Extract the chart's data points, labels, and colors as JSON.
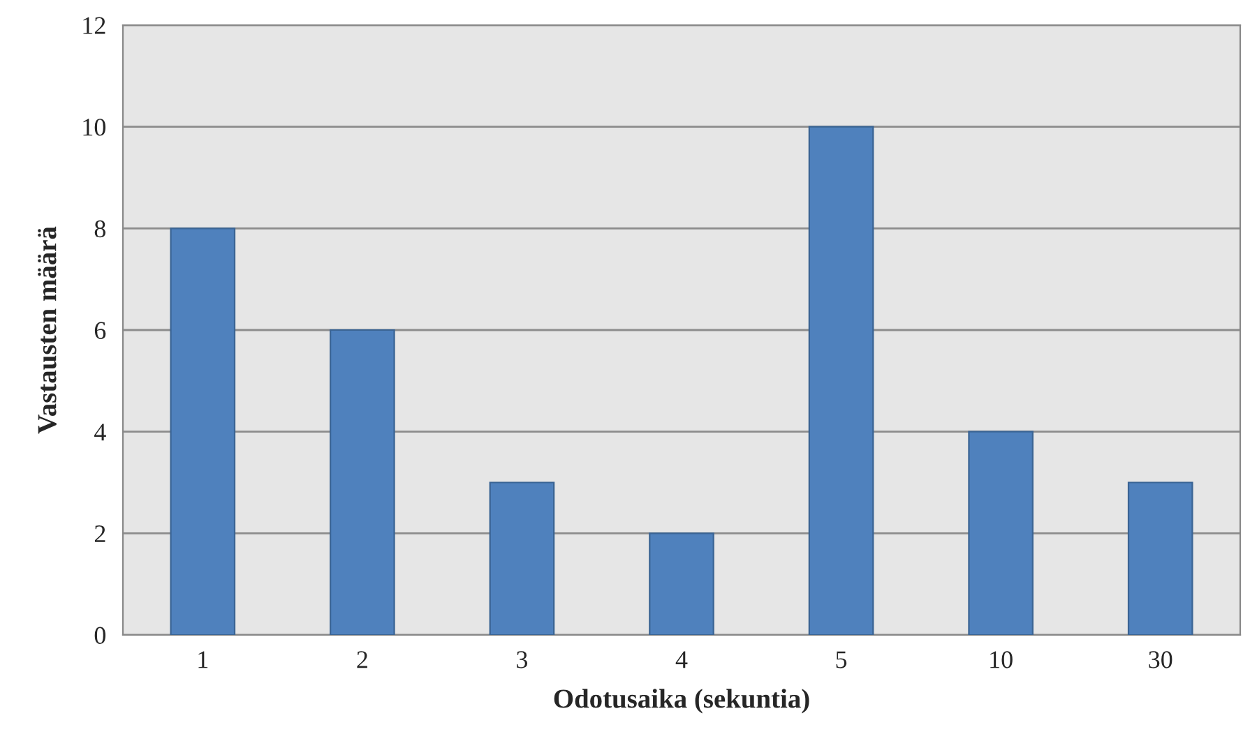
{
  "chart_data": {
    "type": "bar",
    "xlabel": "Odotusaika (sekuntia)",
    "ylabel": "Vastausten määrä",
    "categories": [
      "1",
      "2",
      "3",
      "4",
      "5",
      "10",
      "30"
    ],
    "values": [
      8,
      6,
      3,
      2,
      10,
      4,
      3
    ],
    "color": "#4f81bd",
    "ylim": [
      0,
      12
    ],
    "yticks": [
      0,
      2,
      4,
      6,
      8,
      10,
      12
    ],
    "grid": "y",
    "legend": false
  }
}
